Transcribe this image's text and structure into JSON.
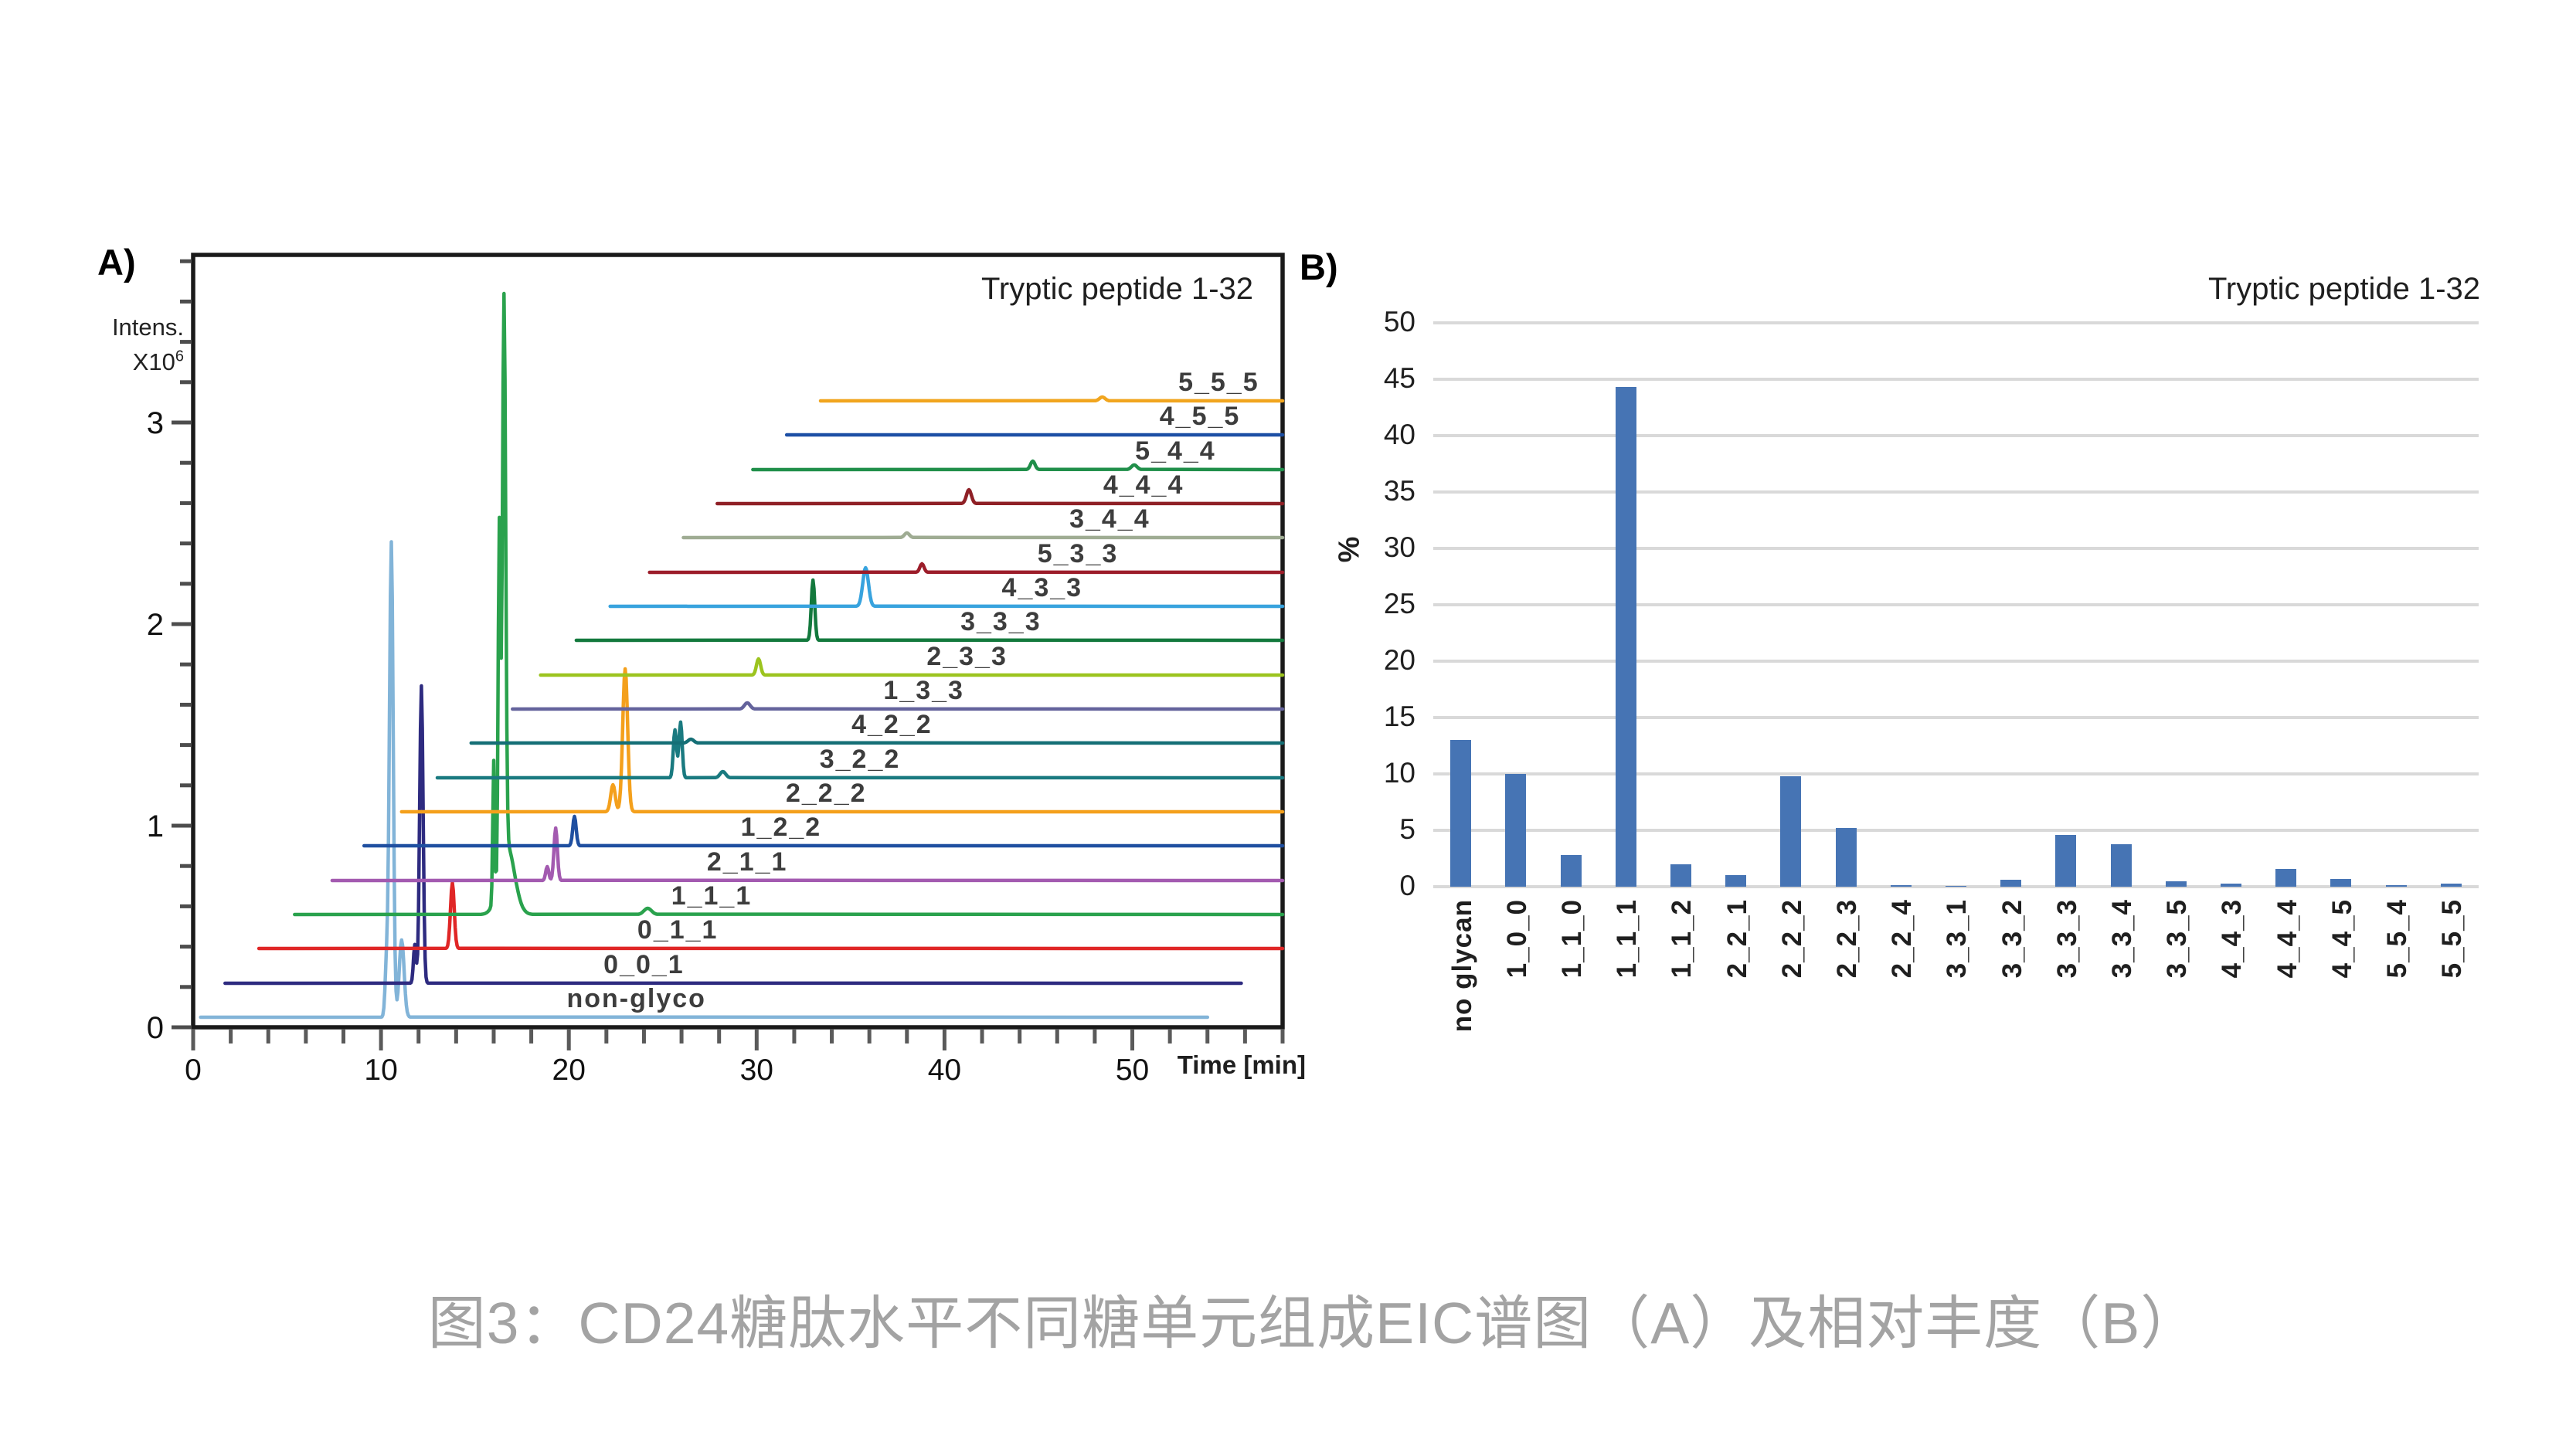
{
  "figure_caption": "图3：CD24糖肽水平不同糖单元组成EIC谱图（A）及相对丰度（B）",
  "panel_a": {
    "panel_label": "A)",
    "title": "Tryptic peptide 1-32",
    "y_axis": {
      "label_line1": "Intens.",
      "label_line2": "X10",
      "label_line2_sup": "6",
      "tick_labels": [
        0,
        1,
        2,
        3
      ],
      "minor_step": 0.2,
      "max_value": 3.83
    },
    "x_axis": {
      "label": "Time [min]",
      "tick_labels": [
        0,
        10,
        20,
        30,
        40,
        50
      ],
      "minor_step": 2,
      "max_value": 58
    }
  },
  "panel_b": {
    "panel_label": "B)",
    "title": "Tryptic peptide 1-32",
    "y_axis_label": "%"
  },
  "chart_data": [
    {
      "type": "line",
      "subtype": "stacked-offset-EIC-chromatograms",
      "title": "Tryptic peptide 1-32",
      "xlabel": "Time [min]",
      "ylabel": "Intens. X10^6",
      "xlim": [
        0,
        58
      ],
      "ylim": [
        0,
        3.83
      ],
      "xticks": [
        0,
        10,
        20,
        30,
        40,
        50
      ],
      "yticks": [
        0,
        1,
        2,
        3
      ],
      "x_minor_step": 2,
      "y_minor_step": 0.2,
      "grid": false,
      "note": "baseline/peak heights are fractions of plot height; peaks=[time_min, height_frac, sigma_min]",
      "traces": [
        {
          "name": "non-glyco",
          "color": "#82b4d8",
          "baseline": 0.013,
          "start": 0.4,
          "end": 54.0,
          "label_t": 23.6,
          "peaks": [
            [
              10.3,
              0.07,
              0.08
            ],
            [
              10.55,
              0.615,
              0.1
            ],
            [
              11.1,
              0.1,
              0.13
            ]
          ]
        },
        {
          "name": "0_0_1",
          "color": "#2e2b80",
          "baseline": 0.057,
          "start": 1.7,
          "end": 55.8,
          "label_t": 24.0,
          "peaks": [
            [
              11.8,
              0.05,
              0.07
            ],
            [
              12.15,
              0.385,
              0.09
            ]
          ]
        },
        {
          "name": "0_1_1",
          "color": "#e02626",
          "baseline": 0.102,
          "start": 3.5,
          "end": 58,
          "label_t": 25.8,
          "peaks": [
            [
              13.8,
              0.085,
              0.1
            ]
          ]
        },
        {
          "name": "1_1_1",
          "color": "#2aa24d",
          "baseline": 0.146,
          "start": 5.4,
          "end": 58,
          "label_t": 27.6,
          "peaks": [
            [
              16.0,
              0.18,
              0.05
            ],
            [
              16.3,
              0.45,
              0.06
            ],
            [
              16.55,
              0.72,
              0.085
            ],
            [
              16.7,
              0.09,
              0.4
            ],
            [
              24.2,
              0.008,
              0.2
            ]
          ]
        },
        {
          "name": "2_1_1",
          "color": "#a35ab0",
          "baseline": 0.19,
          "start": 7.4,
          "end": 58,
          "label_t": 29.5,
          "peaks": [
            [
              18.85,
              0.018,
              0.08
            ],
            [
              19.3,
              0.068,
              0.09
            ]
          ]
        },
        {
          "name": "1_2_2",
          "color": "#1f4fa0",
          "baseline": 0.235,
          "start": 9.1,
          "end": 58,
          "label_t": 31.3,
          "peaks": [
            [
              20.3,
              0.038,
              0.09
            ]
          ]
        },
        {
          "name": "2_2_2",
          "color": "#f4a01c",
          "baseline": 0.279,
          "start": 11.1,
          "end": 58,
          "label_t": 33.7,
          "peaks": [
            [
              22.35,
              0.035,
              0.12
            ],
            [
              23.0,
              0.185,
              0.13
            ]
          ]
        },
        {
          "name": "3_2_2",
          "color": "#1a7a80",
          "baseline": 0.323,
          "start": 13.0,
          "end": 58,
          "label_t": 35.5,
          "peaks": [
            [
              25.65,
              0.062,
              0.085
            ],
            [
              25.95,
              0.072,
              0.085
            ],
            [
              28.2,
              0.008,
              0.15
            ]
          ]
        },
        {
          "name": "4_2_2",
          "color": "#156f76",
          "baseline": 0.368,
          "start": 14.8,
          "end": 58,
          "label_t": 37.2,
          "peaks": [
            [
              26.5,
              0.005,
              0.15
            ]
          ]
        },
        {
          "name": "1_3_3",
          "color": "#64639c",
          "baseline": 0.412,
          "start": 17.0,
          "end": 58,
          "label_t": 38.9,
          "peaks": [
            [
              29.5,
              0.008,
              0.15
            ]
          ]
        },
        {
          "name": "2_3_3",
          "color": "#9cc41f",
          "baseline": 0.456,
          "start": 18.5,
          "end": 58,
          "label_t": 41.2,
          "peaks": [
            [
              30.1,
              0.021,
              0.11
            ]
          ]
        },
        {
          "name": "3_3_3",
          "color": "#13793d",
          "baseline": 0.501,
          "start": 20.4,
          "end": 58,
          "label_t": 43.0,
          "peaks": [
            [
              33.0,
              0.078,
              0.09
            ]
          ]
        },
        {
          "name": "4_3_3",
          "color": "#38a3de",
          "baseline": 0.545,
          "start": 22.2,
          "end": 58,
          "label_t": 45.2,
          "peaks": [
            [
              35.8,
              0.05,
              0.15
            ]
          ]
        },
        {
          "name": "5_3_3",
          "color": "#9c1d2a",
          "baseline": 0.589,
          "start": 24.3,
          "end": 58,
          "label_t": 47.1,
          "peaks": [
            [
              38.8,
              0.011,
              0.11
            ]
          ]
        },
        {
          "name": "3_4_4",
          "color": "#9fac93",
          "baseline": 0.634,
          "start": 26.1,
          "end": 58,
          "label_t": 48.8,
          "peaks": [
            [
              38.0,
              0.006,
              0.13
            ]
          ]
        },
        {
          "name": "4_4_4",
          "color": "#8f2026",
          "baseline": 0.678,
          "start": 27.9,
          "end": 58,
          "label_t": 50.6,
          "peaks": [
            [
              41.3,
              0.018,
              0.13
            ]
          ]
        },
        {
          "name": "5_4_4",
          "color": "#208f4a",
          "baseline": 0.722,
          "start": 29.8,
          "end": 58,
          "label_t": 52.3,
          "peaks": [
            [
              44.7,
              0.011,
              0.12
            ],
            [
              50.1,
              0.006,
              0.15
            ]
          ]
        },
        {
          "name": "4_5_5",
          "color": "#1c4fa5",
          "baseline": 0.767,
          "start": 31.6,
          "end": 58,
          "label_t": 53.6,
          "peaks": []
        },
        {
          "name": "5_5_5",
          "color": "#f1a51e",
          "baseline": 0.811,
          "start": 33.4,
          "end": 58,
          "label_t": 54.6,
          "peaks": [
            [
              48.4,
              0.005,
              0.15
            ]
          ]
        }
      ]
    },
    {
      "type": "bar",
      "title": "Tryptic peptide 1-32",
      "xlabel": "",
      "ylabel": "%",
      "ylim": [
        0,
        50
      ],
      "ytick_step": 5,
      "ytick_values": [
        0,
        5,
        10,
        15,
        20,
        25,
        30,
        35,
        40,
        45,
        50
      ],
      "grid": true,
      "legend": "none",
      "bar_color": "#4674b4",
      "gridline_color": "#d9d9d9",
      "categories": [
        "no glycan",
        "1_0_0",
        "1_1_0",
        "1_1_1",
        "1_1_2",
        "2_2_1",
        "2_2_2",
        "2_2_3",
        "2_2_4",
        "3_3_1",
        "3_3_2",
        "3_3_3",
        "3_3_4",
        "3_3_5",
        "4_4_3",
        "4_4_4",
        "4_4_5",
        "5_5_4",
        "5_5_5"
      ],
      "values": [
        13.0,
        10.0,
        2.8,
        44.3,
        2.0,
        1.0,
        9.8,
        5.2,
        0.15,
        0.05,
        0.65,
        4.6,
        3.8,
        0.5,
        0.3,
        1.6,
        0.7,
        0.12,
        0.3
      ]
    }
  ]
}
